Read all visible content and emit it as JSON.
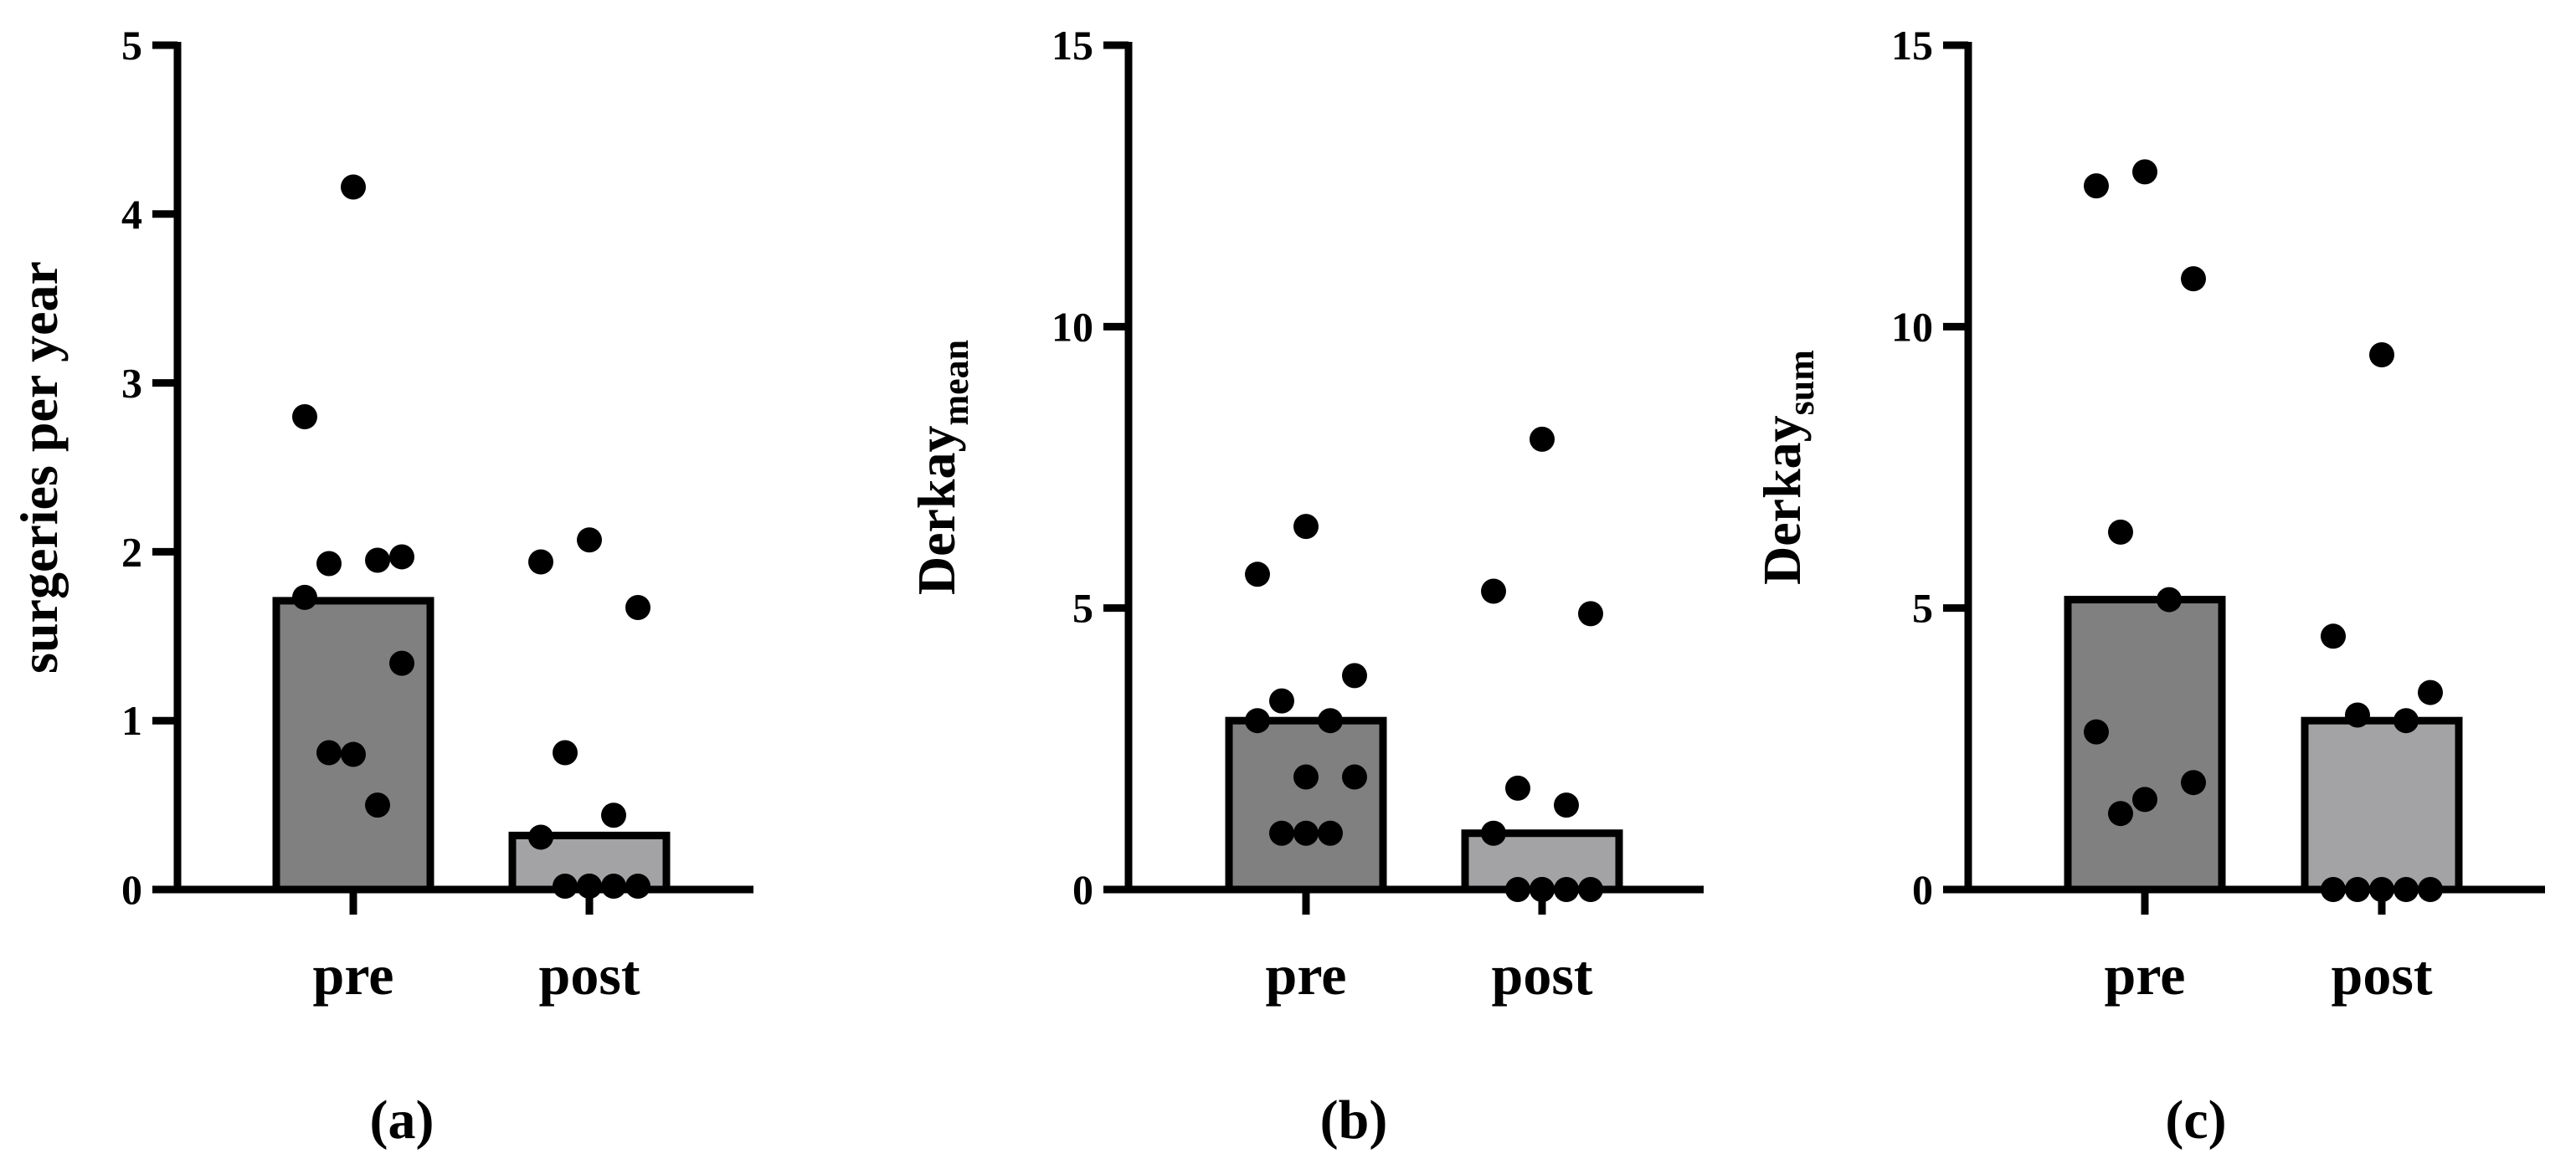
{
  "chart_data": [
    {
      "type": "bar",
      "panel_label": "(a)",
      "ylabel": "surgeries per year",
      "ylabel_main": "surgeries per year",
      "ylabel_sub": "",
      "ylim": [
        0,
        5
      ],
      "yticks": [
        0,
        1,
        2,
        3,
        4,
        5
      ],
      "ytick_labels": [
        "0",
        "1",
        "2",
        "3",
        "4",
        "5"
      ],
      "categories": [
        "pre",
        "post"
      ],
      "bar_values": [
        1.71,
        0.32
      ],
      "bar_colors": [
        "#808080",
        "#a3a3a6"
      ],
      "points": [
        [
          4.16,
          2.8,
          1.97,
          1.93,
          1.95,
          1.73,
          1.34,
          0.8,
          0.81,
          0.5
        ],
        [
          2.07,
          1.94,
          1.67,
          0.81,
          0.44,
          0.31,
          0.02,
          0.02,
          0.02,
          0.02,
          0.02
        ]
      ]
    },
    {
      "type": "bar",
      "panel_label": "(b)",
      "ylabel": "Derkay mean",
      "ylabel_main": "Derkay",
      "ylabel_sub": "mean",
      "ylim": [
        0,
        15
      ],
      "yticks": [
        0,
        5,
        10,
        15
      ],
      "ytick_labels": [
        "0",
        "5",
        "10",
        "15"
      ],
      "categories": [
        "pre",
        "post"
      ],
      "bar_values": [
        3.0,
        1.0
      ],
      "bar_colors": [
        "#808080",
        "#a3a3a6"
      ],
      "points": [
        [
          6.45,
          5.6,
          3.8,
          3.35,
          3.0,
          3.0,
          2.0,
          2.0,
          1.0,
          1.0,
          1.0
        ],
        [
          8.0,
          5.3,
          4.9,
          1.8,
          1.5,
          1.0,
          0.0,
          0.0,
          0.0,
          0.0,
          0.0
        ]
      ]
    },
    {
      "type": "bar",
      "panel_label": "(c)",
      "ylabel": "Derkay sum",
      "ylabel_main": "Derkay",
      "ylabel_sub": "sum",
      "ylim": [
        0,
        15
      ],
      "yticks": [
        0,
        5,
        10,
        15
      ],
      "ytick_labels": [
        "0",
        "5",
        "10",
        "15"
      ],
      "categories": [
        "pre",
        "post"
      ],
      "bar_values": [
        5.15,
        3.0
      ],
      "bar_colors": [
        "#808080",
        "#a3a3a6"
      ],
      "points": [
        [
          12.75,
          12.5,
          10.85,
          6.35,
          5.15,
          2.8,
          1.9,
          1.6,
          1.35
        ],
        [
          9.5,
          4.5,
          3.5,
          3.1,
          3.0,
          0.0,
          0.0,
          0.0,
          0.0,
          0.0
        ]
      ]
    }
  ]
}
